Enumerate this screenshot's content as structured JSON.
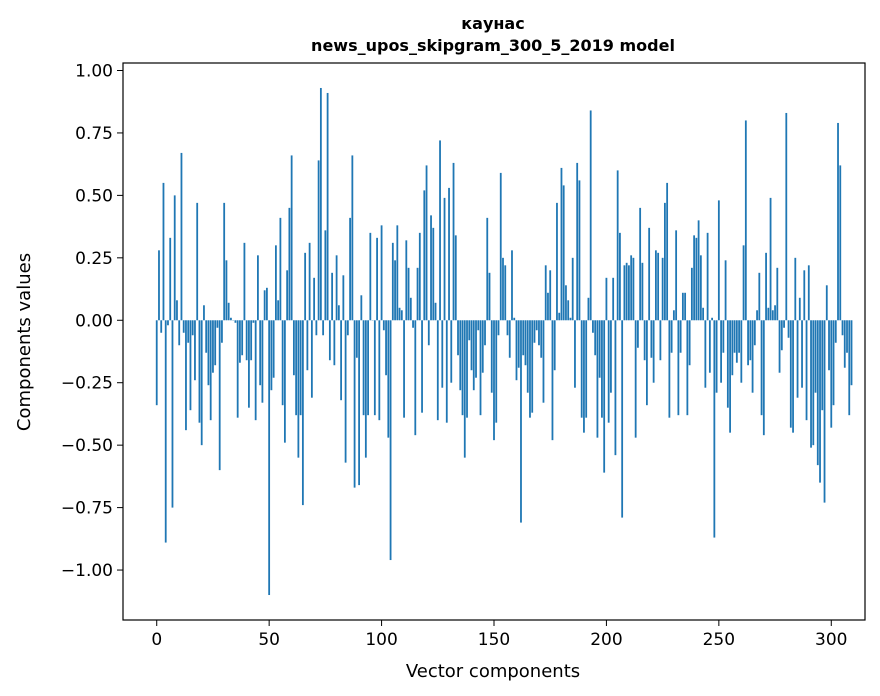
{
  "chart_data": {
    "type": "bar",
    "title": "каунас",
    "subtitle": "news_upos_skipgram_300_5_2019 model",
    "xlabel": "Vector components",
    "ylabel": "Components values",
    "xlim": [
      -15,
      315
    ],
    "ylim": [
      -1.2,
      1.03
    ],
    "xticks": [
      0,
      50,
      100,
      150,
      200,
      250,
      300
    ],
    "xtick_labels": [
      "0",
      "50",
      "100",
      "150",
      "200",
      "250",
      "300"
    ],
    "yticks": [
      1.0,
      0.75,
      0.5,
      0.25,
      0.0,
      -0.25,
      -0.5,
      -0.75,
      -1.0
    ],
    "ytick_labels": [
      "1.00",
      "0.75",
      "0.50",
      "0.25",
      "0.00",
      "−0.25",
      "−0.50",
      "−0.75",
      "−1.00"
    ],
    "bar_color": "#1f77b4",
    "values": [
      -0.34,
      0.28,
      -0.05,
      0.55,
      -0.89,
      -0.02,
      0.33,
      -0.75,
      0.5,
      0.08,
      -0.1,
      0.67,
      -0.05,
      -0.44,
      -0.09,
      -0.36,
      -0.06,
      -0.24,
      0.47,
      -0.41,
      -0.5,
      0.06,
      -0.13,
      -0.26,
      -0.4,
      -0.21,
      -0.18,
      -0.03,
      -0.6,
      -0.09,
      0.47,
      0.24,
      0.07,
      0.01,
      0.0,
      -0.01,
      -0.39,
      -0.17,
      -0.14,
      0.31,
      -0.16,
      -0.35,
      -0.16,
      -0.01,
      -0.4,
      0.26,
      -0.26,
      -0.33,
      0.12,
      0.13,
      -1.1,
      -0.28,
      -0.23,
      0.3,
      0.08,
      0.41,
      -0.34,
      -0.49,
      0.2,
      0.45,
      0.66,
      -0.22,
      -0.38,
      -0.55,
      -0.38,
      -0.74,
      0.27,
      -0.2,
      0.31,
      -0.31,
      0.17,
      -0.06,
      0.64,
      0.93,
      -0.06,
      0.36,
      0.91,
      -0.16,
      0.19,
      -0.18,
      0.26,
      0.06,
      -0.32,
      0.18,
      -0.57,
      -0.06,
      0.41,
      0.66,
      -0.67,
      -0.15,
      -0.66,
      0.1,
      -0.38,
      -0.55,
      -0.38,
      0.35,
      0.0,
      -0.38,
      0.33,
      -0.4,
      0.38,
      -0.04,
      -0.22,
      -0.47,
      -0.96,
      0.31,
      0.24,
      0.38,
      0.05,
      0.04,
      -0.39,
      0.32,
      0.21,
      0.09,
      -0.03,
      -0.46,
      0.21,
      0.35,
      -0.37,
      0.52,
      0.62,
      -0.1,
      0.42,
      0.37,
      0.07,
      -0.4,
      0.72,
      -0.27,
      0.49,
      -0.41,
      0.53,
      -0.25,
      0.63,
      0.34,
      -0.14,
      -0.28,
      -0.38,
      -0.55,
      -0.39,
      -0.08,
      -0.2,
      -0.28,
      -0.23,
      -0.04,
      -0.38,
      -0.21,
      -0.1,
      0.41,
      0.19,
      -0.29,
      -0.48,
      -0.41,
      -0.06,
      0.59,
      0.25,
      0.22,
      -0.06,
      -0.15,
      0.28,
      0.01,
      -0.24,
      -0.19,
      -0.81,
      -0.14,
      -0.18,
      -0.29,
      -0.39,
      -0.37,
      -0.09,
      -0.04,
      -0.1,
      -0.15,
      -0.33,
      0.22,
      0.11,
      0.2,
      -0.48,
      -0.2,
      0.47,
      0.03,
      0.61,
      0.54,
      0.14,
      0.08,
      0.01,
      0.25,
      -0.27,
      0.63,
      0.56,
      -0.39,
      -0.45,
      -0.39,
      0.09,
      0.84,
      -0.05,
      -0.14,
      -0.47,
      -0.23,
      -0.39,
      -0.61,
      0.17,
      -0.41,
      -0.29,
      0.17,
      -0.54,
      0.6,
      0.35,
      -0.79,
      0.22,
      0.23,
      0.22,
      0.26,
      0.25,
      -0.47,
      -0.11,
      0.45,
      0.23,
      -0.16,
      -0.34,
      0.37,
      -0.15,
      -0.25,
      0.28,
      0.27,
      -0.16,
      0.25,
      0.47,
      0.55,
      -0.39,
      -0.13,
      0.04,
      0.36,
      -0.38,
      -0.13,
      0.11,
      0.11,
      -0.38,
      -0.18,
      0.21,
      0.34,
      0.33,
      0.4,
      0.26,
      0.05,
      -0.27,
      0.35,
      -0.21,
      0.01,
      -0.87,
      -0.29,
      0.48,
      -0.25,
      -0.13,
      0.24,
      -0.35,
      -0.45,
      -0.22,
      -0.13,
      -0.17,
      -0.13,
      -0.25,
      0.3,
      0.8,
      -0.18,
      -0.16,
      -0.29,
      -0.1,
      0.04,
      0.19,
      -0.38,
      -0.46,
      0.27,
      0.05,
      0.49,
      0.04,
      0.06,
      0.21,
      -0.21,
      -0.12,
      -0.03,
      0.83,
      -0.07,
      -0.43,
      -0.45,
      0.25,
      -0.31,
      0.09,
      -0.27,
      0.2,
      -0.4,
      0.22,
      -0.51,
      -0.5,
      -0.29,
      -0.58,
      -0.65,
      -0.36,
      -0.73,
      0.14,
      -0.2,
      -0.43,
      -0.34,
      -0.09,
      0.79,
      0.62,
      -0.06,
      -0.19,
      -0.13,
      -0.38,
      -0.26
    ]
  }
}
